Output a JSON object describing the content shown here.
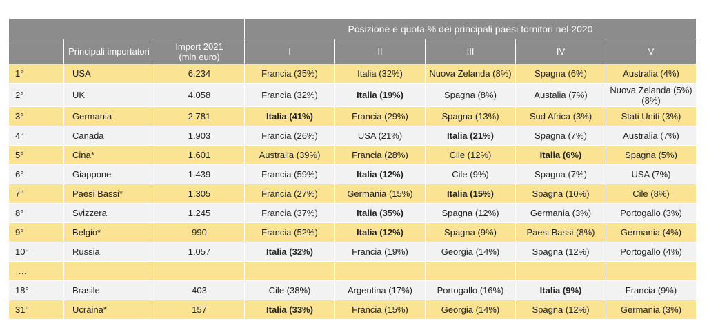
{
  "header": {
    "main_title": "Posizione e quota % dei principali paesi fornitori nel 2020",
    "col_importers": "Principali importatori",
    "col_import": "Import 2021 (mln euro)",
    "positions": [
      "I",
      "II",
      "III",
      "IV",
      "V"
    ]
  },
  "rows": [
    {
      "rank": "1°",
      "country": "USA",
      "import": "6.234",
      "c": [
        "Francia (35%)",
        "Italia (32%)",
        "Nuova Zelanda (8%)",
        "Spagna (6%)",
        "Australia (4%)"
      ]
    },
    {
      "rank": "2°",
      "country": "UK",
      "import": "4.058",
      "c": [
        "Francia (32%)",
        "Italia (19%)",
        "Spagna (8%)",
        "Austalia (7%)",
        "Nuova Zelanda (5%) (8%)"
      ]
    },
    {
      "rank": "3°",
      "country": "Germania",
      "import": "2.781",
      "c": [
        "Italia (41%)",
        "Francia (29%)",
        "Spagna (13%)",
        "Sud Africa (3%)",
        "Stati Uniti (3%)"
      ]
    },
    {
      "rank": "4°",
      "country": "Canada",
      "import": "1.903",
      "c": [
        "Francia (26%)",
        "USA (21%)",
        "Italia (21%)",
        "Spagna (7%)",
        "Australia (7%)"
      ]
    },
    {
      "rank": "5°",
      "country": "Cina*",
      "import": "1.601",
      "c": [
        "Australia (39%)",
        "Francia (28%)",
        "Cile (12%)",
        "Italia (6%)",
        "Spagna (5%)"
      ]
    },
    {
      "rank": "6°",
      "country": "Giappone",
      "import": "1.439",
      "c": [
        "Francia (59%)",
        "Italia (12%)",
        "Cile (9%)",
        "Spagna (7%)",
        "USA (7%)"
      ]
    },
    {
      "rank": "7°",
      "country": "Paesi Bassi*",
      "import": "1.305",
      "c": [
        "Francia (27%)",
        "Germania (15%)",
        "Italia (15%)",
        "Spagna (10%)",
        "Cile (8%)"
      ]
    },
    {
      "rank": "8°",
      "country": "Svizzera",
      "import": "1.245",
      "c": [
        "Francia (37%)",
        "Italia (35%)",
        "Spagna (12%)",
        "Germania (3%)",
        "Portogallo (3%)"
      ]
    },
    {
      "rank": "9°",
      "country": "Belgio*",
      "import": "990",
      "c": [
        "Francia (52%)",
        "Italia (12%)",
        "Spagna (9%)",
        "Paesi Bassi (8%)",
        "Germania (4%)"
      ]
    },
    {
      "rank": "10°",
      "country": "Russia",
      "import": "1.057",
      "c": [
        "Italia (32%)",
        "Francia (19%)",
        "Georgia (14%)",
        "Spagna (12%)",
        "Portogallo (4%)"
      ]
    },
    {
      "rank": "….",
      "country": "",
      "import": "",
      "c": [
        "",
        "",
        "",
        "",
        ""
      ]
    },
    {
      "rank": "18°",
      "country": "Brasile",
      "import": "403",
      "c": [
        "Cile (38%)",
        "Argentina (17%)",
        "Portogallo (16%)",
        "Italia (9%)",
        "Francia (9%)"
      ]
    },
    {
      "rank": "31°",
      "country": "Ucraina*",
      "import": "157",
      "c": [
        "Italia (33%)",
        "Francia (15%)",
        "Georgia (14%)",
        "Spagna (12%)",
        "Germania (3%)"
      ]
    }
  ]
}
